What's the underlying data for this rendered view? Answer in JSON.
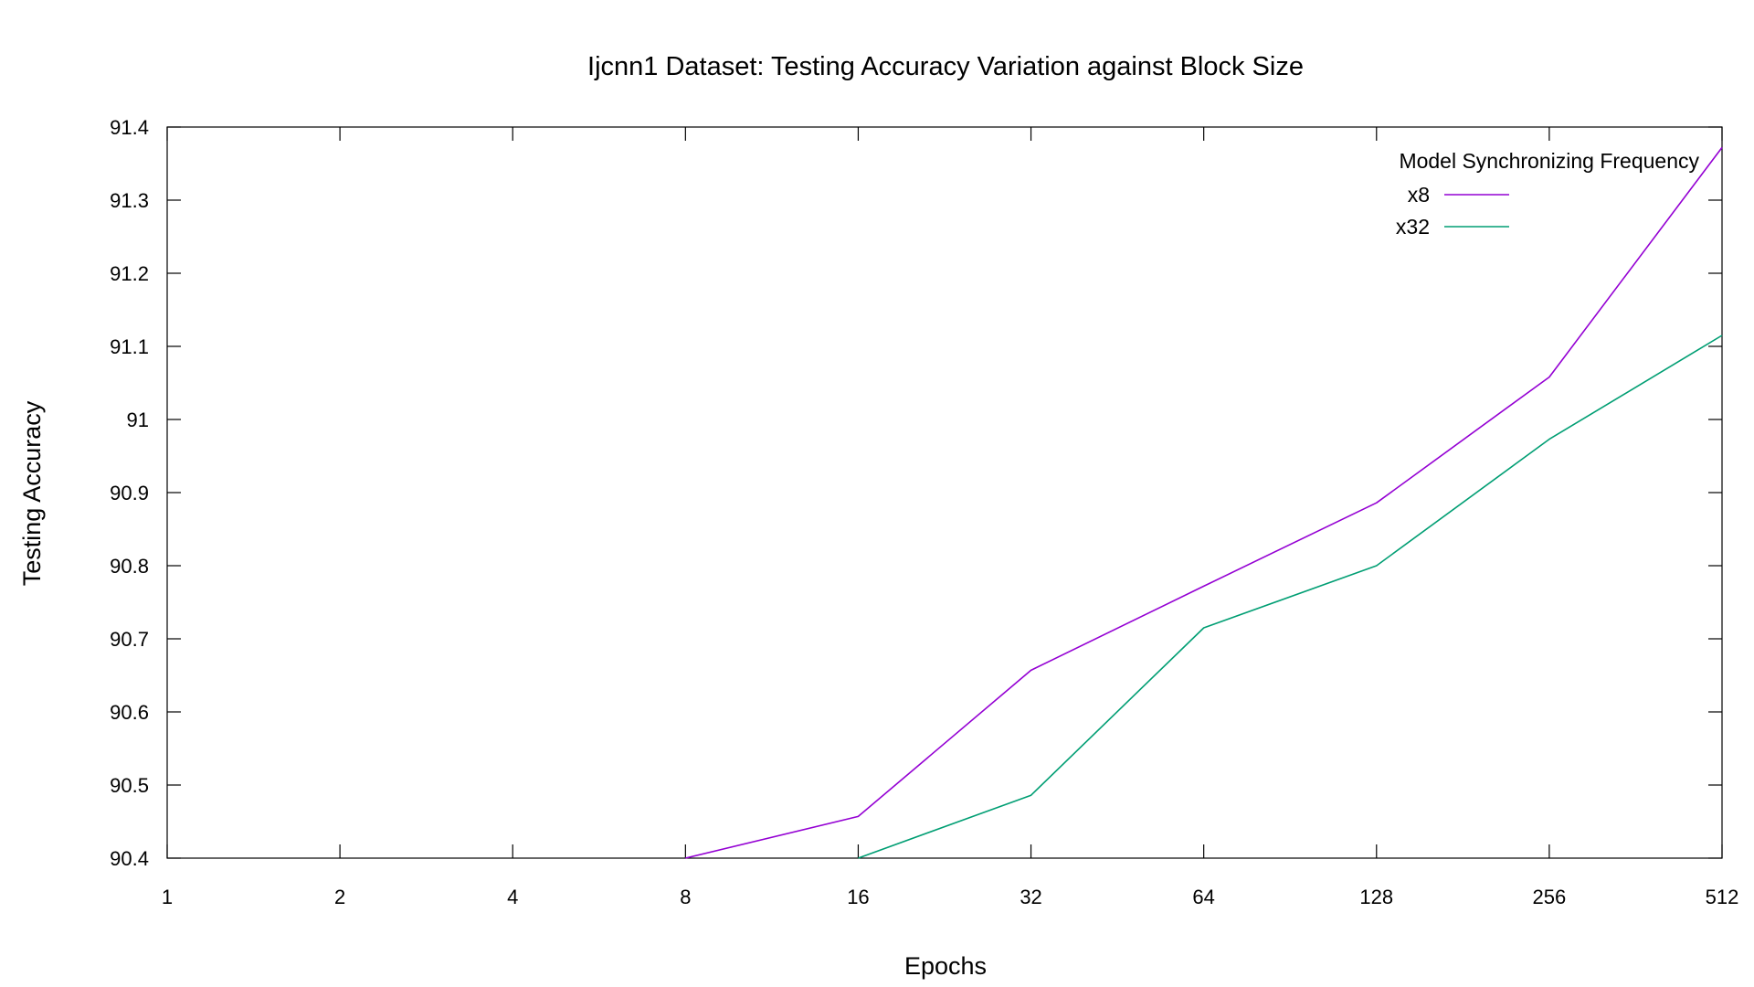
{
  "chart_data": {
    "type": "line",
    "title": "Ijcnn1 Dataset: Testing  Accuracy Variation against Block Size",
    "xlabel": "Epochs",
    "ylabel": "Testing Accuracy",
    "x_scale": "log2",
    "x": [
      1,
      2,
      4,
      8,
      16,
      32,
      64,
      128,
      256,
      512
    ],
    "xticks": [
      "1",
      "2",
      "4",
      "8",
      "16",
      "32",
      "64",
      "128",
      "256",
      "512"
    ],
    "yticks": [
      "90.4",
      "90.5",
      "90.6",
      "90.7",
      "90.8",
      "90.9",
      "91",
      "91.1",
      "91.2",
      "91.3",
      "91.4"
    ],
    "ylim": [
      90.4,
      91.4
    ],
    "grid": false,
    "legend": {
      "title": "Model Synchronizing Frequency",
      "placement": "top-right"
    },
    "series": [
      {
        "name": "x8",
        "color": "#9400d3",
        "x": [
          8,
          16,
          32,
          64,
          128,
          256,
          512
        ],
        "values": [
          90.4,
          90.457,
          90.657,
          90.772,
          90.886,
          91.058,
          91.372
        ]
      },
      {
        "name": "x32",
        "color": "#009e73",
        "x": [
          16,
          32,
          64,
          128,
          256,
          512
        ],
        "values": [
          90.4,
          90.486,
          90.715,
          90.8,
          90.973,
          91.115
        ]
      }
    ]
  }
}
